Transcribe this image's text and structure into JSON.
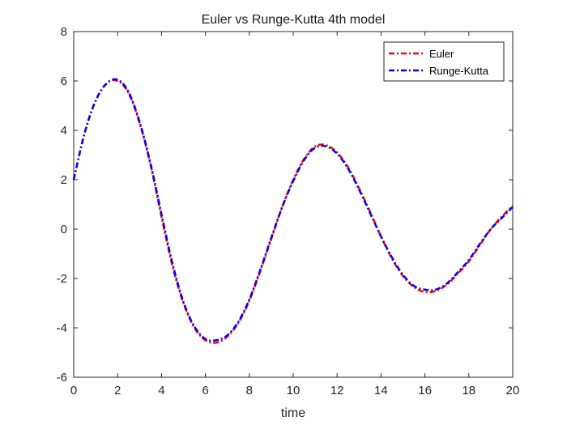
{
  "chart_data": {
    "type": "line",
    "title": "Euler vs Runge-Kutta 4th model",
    "xlabel": "time",
    "ylabel": "",
    "xlim": [
      0,
      20
    ],
    "ylim": [
      -6,
      8
    ],
    "xticks": [
      0,
      2,
      4,
      6,
      8,
      10,
      12,
      14,
      16,
      18,
      20
    ],
    "yticks": [
      -6,
      -4,
      -2,
      0,
      2,
      4,
      6,
      8
    ],
    "grid": false,
    "legend_position": "top-right",
    "series": [
      {
        "name": "Euler",
        "color": "#ff0000",
        "line_style": "dash-dot",
        "x": [
          0,
          0.5,
          1,
          1.5,
          2,
          2.5,
          3,
          3.5,
          4,
          4.5,
          5,
          5.5,
          6,
          6.5,
          7,
          7.5,
          8,
          8.5,
          9,
          9.5,
          10,
          10.5,
          11,
          11.5,
          12,
          12.5,
          13,
          13.5,
          14,
          14.5,
          15,
          15.5,
          16,
          16.5,
          17,
          17.5,
          18,
          18.5,
          19,
          19.5,
          20
        ],
        "y": [
          2.0,
          3.9,
          5.2,
          5.9,
          6.0,
          5.5,
          4.3,
          2.6,
          0.5,
          -1.5,
          -3.0,
          -4.0,
          -4.5,
          -4.6,
          -4.35,
          -3.8,
          -2.9,
          -1.7,
          -0.4,
          0.9,
          2.0,
          2.85,
          3.35,
          3.4,
          3.1,
          2.5,
          1.65,
          0.7,
          -0.3,
          -1.2,
          -1.9,
          -2.35,
          -2.55,
          -2.5,
          -2.25,
          -1.8,
          -1.3,
          -0.65,
          0.0,
          0.5,
          0.95
        ]
      },
      {
        "name": "Runge-Kutta",
        "color": "#0000ff",
        "line_style": "dash-dot",
        "x": [
          0,
          0.5,
          1,
          1.5,
          2,
          2.5,
          3,
          3.5,
          4,
          4.5,
          5,
          5.5,
          6,
          6.5,
          7,
          7.5,
          8,
          8.5,
          9,
          9.5,
          10,
          10.5,
          11,
          11.5,
          12,
          12.5,
          13,
          13.5,
          14,
          14.5,
          15,
          15.5,
          16,
          16.5,
          17,
          17.5,
          18,
          18.5,
          19,
          19.5,
          20
        ],
        "y": [
          2.0,
          3.9,
          5.2,
          5.9,
          6.05,
          5.55,
          4.35,
          2.65,
          0.6,
          -1.4,
          -2.95,
          -3.95,
          -4.45,
          -4.5,
          -4.3,
          -3.75,
          -2.85,
          -1.65,
          -0.35,
          0.9,
          1.95,
          2.8,
          3.3,
          3.35,
          3.05,
          2.45,
          1.6,
          0.65,
          -0.3,
          -1.15,
          -1.85,
          -2.3,
          -2.45,
          -2.45,
          -2.2,
          -1.75,
          -1.25,
          -0.6,
          0.0,
          0.45,
          0.9
        ]
      }
    ]
  }
}
